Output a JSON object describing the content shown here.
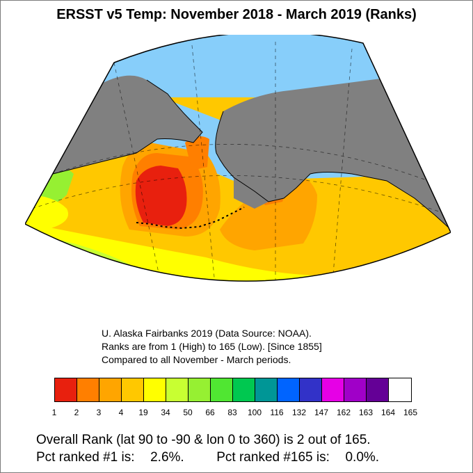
{
  "title": "ERSST v5 Temp: November 2018 - March 2019 (Ranks)",
  "credits": {
    "line1": "U. Alaska Fairbanks 2019 (Data Source: NOAA).",
    "line2": "Ranks are from 1 (High) to 165 (Low). [Since 1855]",
    "line3": "Compared to all November - March periods."
  },
  "colorbar": {
    "colors": [
      "#e8200e",
      "#ff7f00",
      "#ffa500",
      "#ffc800",
      "#ffff00",
      "#c8ff32",
      "#96f032",
      "#50e632",
      "#00c850",
      "#009696",
      "#0064ff",
      "#3232c8",
      "#e600e6",
      "#a000c8",
      "#640096",
      "#ffffff"
    ],
    "labels": [
      "1",
      "2",
      "3",
      "4",
      "19",
      "34",
      "50",
      "66",
      "83",
      "100",
      "116",
      "132",
      "147",
      "162",
      "163",
      "164",
      "165"
    ]
  },
  "summary": {
    "overall": "Overall Rank (lat 90 to -90 & lon 0 to 360) is 2 out of 165.",
    "pct1_label": "Pct ranked #1 is:",
    "pct1_value": "2.6%.",
    "pct165_label": "Pct ranked #165 is:",
    "pct165_value": "0.0%."
  },
  "map_colors": {
    "land": "#808080",
    "sea_ice": "#87cefa",
    "rank_1": "#e8200e",
    "rank_2": "#ff7f00",
    "rank_3": "#ffa500",
    "rank_4_19": "#ffc800",
    "rank_19_34": "#ffff00",
    "rank_34_50": "#c8ff32",
    "rank_50_66": "#96f032"
  }
}
